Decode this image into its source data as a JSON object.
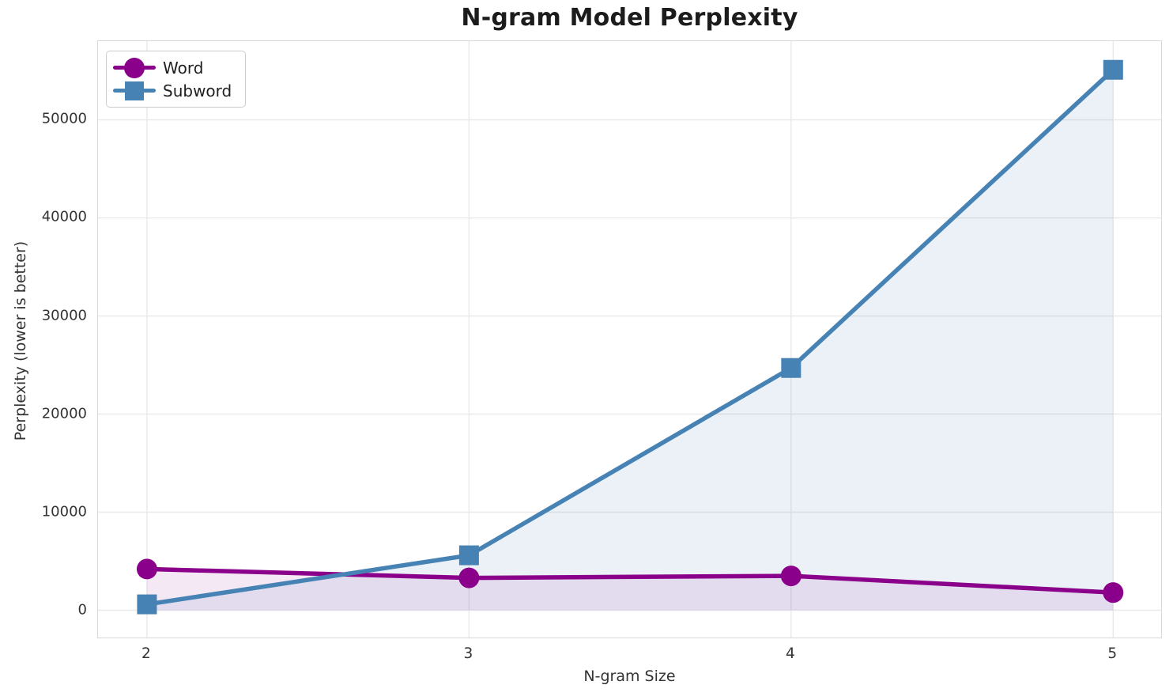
{
  "chart_data": {
    "type": "line",
    "title": "N-gram Model Perplexity",
    "xlabel": "N-gram Size",
    "ylabel": "Perplexity (lower is better)",
    "x": [
      2,
      3,
      4,
      5
    ],
    "series": [
      {
        "name": "Word",
        "marker": "circle",
        "color": "#8B008B",
        "fill_alpha": 0.09,
        "values": [
          4200,
          3300,
          3500,
          1800
        ]
      },
      {
        "name": "Subword",
        "marker": "square",
        "color": "#4682B4",
        "fill_alpha": 0.11,
        "values": [
          600,
          5600,
          24700,
          55100
        ]
      }
    ],
    "xticks": [
      2,
      3,
      4,
      5
    ],
    "yticks": [
      0,
      10000,
      20000,
      30000,
      40000,
      50000
    ],
    "xlim": [
      1.848,
      5.149
    ],
    "ylim": [
      -2782,
      58024
    ],
    "grid": true,
    "area_fill_baseline": 0,
    "legend_position": "upper left",
    "background_color": "#ffffff",
    "grid_color": "#e9e9e9"
  }
}
